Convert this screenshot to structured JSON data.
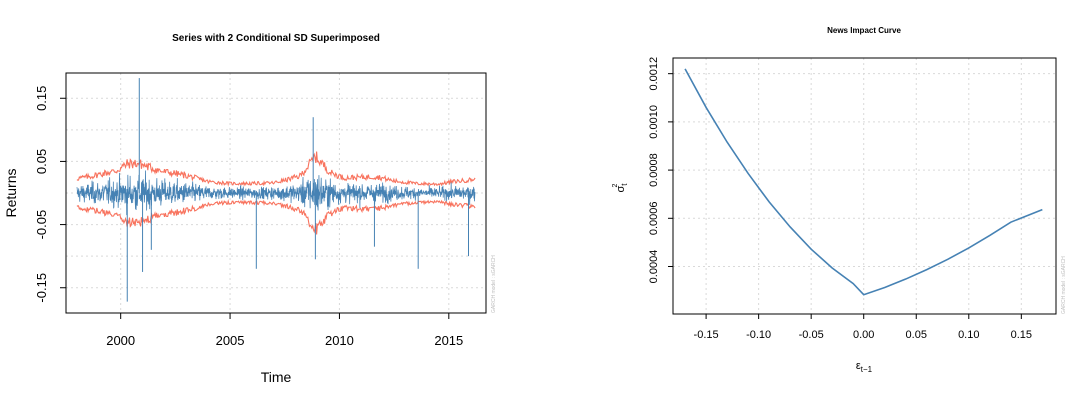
{
  "chart_data": [
    {
      "type": "line",
      "title": "Series with 2 Conditional SD Superimposed",
      "xlabel": "Time",
      "ylabel": "Returns",
      "x_ticks": [
        "2000",
        "2005",
        "2010",
        "2015"
      ],
      "y_ticks": [
        "-0.15",
        "-0.05",
        "0.05",
        "0.15"
      ],
      "xlim": [
        1997.5,
        2016.7
      ],
      "ylim": [
        -0.19,
        0.19
      ],
      "grid": true,
      "watermark": "GARCH model : sGARCH",
      "series": [
        {
          "color": "#4682B4",
          "style": "daily returns (high-frequency)"
        },
        {
          "color": "#F8735E",
          "style": "+/- 2 conditional SD band"
        }
      ],
      "range": {
        "x_start": 1998.0,
        "x_end": 2016.2
      },
      "sd_knots": {
        "x": [
          1998.0,
          1998.6,
          1999.2,
          1999.8,
          2000.3,
          2000.8,
          2001.3,
          2001.9,
          2002.5,
          2003.2,
          2004.0,
          2005.0,
          2006.0,
          2007.0,
          2007.6,
          2008.2,
          2008.6,
          2008.9,
          2009.2,
          2009.6,
          2010.2,
          2011.0,
          2011.7,
          2012.5,
          2013.5,
          2014.5,
          2015.2,
          2015.8,
          2016.2
        ],
        "y": [
          0.023,
          0.026,
          0.031,
          0.035,
          0.046,
          0.047,
          0.041,
          0.034,
          0.031,
          0.026,
          0.018,
          0.015,
          0.015,
          0.016,
          0.021,
          0.027,
          0.044,
          0.058,
          0.047,
          0.032,
          0.024,
          0.025,
          0.026,
          0.019,
          0.015,
          0.014,
          0.018,
          0.02,
          0.022
        ]
      },
      "spikes": [
        {
          "x": 2000.3,
          "y": -0.172
        },
        {
          "x": 2000.85,
          "y": 0.182
        },
        {
          "x": 2001.0,
          "y": -0.125
        },
        {
          "x": 2001.4,
          "y": -0.09
        },
        {
          "x": 2006.2,
          "y": -0.12
        },
        {
          "x": 2008.8,
          "y": 0.12
        },
        {
          "x": 2008.9,
          "y": -0.105
        },
        {
          "x": 2011.6,
          "y": -0.085
        },
        {
          "x": 2013.6,
          "y": -0.12
        },
        {
          "x": 2015.9,
          "y": -0.1
        }
      ]
    },
    {
      "type": "line",
      "title": "News Impact Curve",
      "xlabel": "ε",
      "xlabel_sub": "t−1",
      "ylabel": "σ",
      "ylabel_sub": "t",
      "ylabel_sup": "2",
      "x_ticks": [
        "-0.15",
        "-0.10",
        "-0.05",
        "0.00",
        "0.05",
        "0.10",
        "0.15"
      ],
      "y_ticks": [
        "0.0004",
        "0.0006",
        "0.0008",
        "0.0010",
        "0.0012"
      ],
      "xlim": [
        -0.1815,
        0.183
      ],
      "ylim": [
        0.000203,
        0.001265
      ],
      "grid": true,
      "watermark": "GARCH model : sGARCH",
      "line_color": "#4682B4",
      "x": [
        -0.17,
        -0.15,
        -0.13,
        -0.11,
        -0.09,
        -0.07,
        -0.05,
        -0.03,
        -0.01,
        0.0,
        0.02,
        0.04,
        0.06,
        0.08,
        0.1,
        0.12,
        0.14,
        0.17
      ],
      "y": [
        0.00122,
        0.00106,
        0.000916,
        0.000786,
        0.000668,
        0.000564,
        0.000472,
        0.000394,
        0.000329,
        0.000283,
        0.000313,
        0.000348,
        0.000387,
        0.00043,
        0.000477,
        0.000529,
        0.000584,
        0.000636
      ]
    }
  ]
}
